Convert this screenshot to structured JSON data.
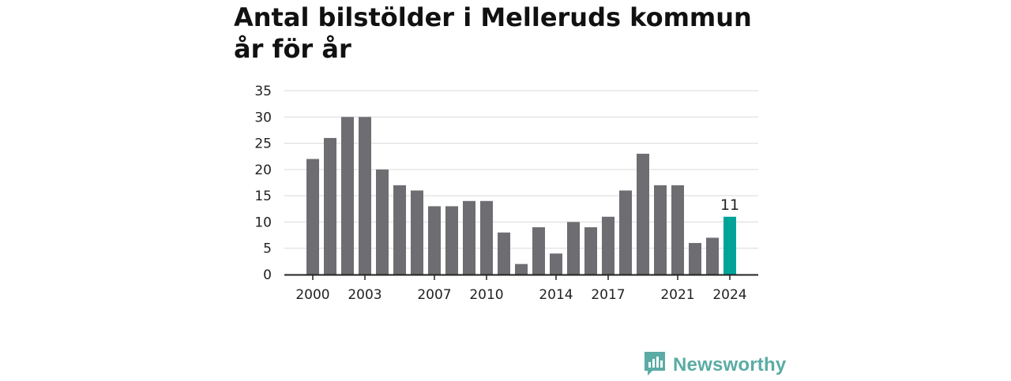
{
  "chart_data": {
    "type": "bar",
    "title": "Antal bilstölder i Melleruds kommun år för år",
    "xlabel": "",
    "ylabel": "",
    "ylim": [
      0,
      35
    ],
    "yticks": [
      0,
      5,
      10,
      15,
      20,
      25,
      30,
      35
    ],
    "categories": [
      "2000",
      "2001",
      "2002",
      "2003",
      "2004",
      "2005",
      "2006",
      "2007",
      "2008",
      "2009",
      "2010",
      "2011",
      "2012",
      "2013",
      "2014",
      "2015",
      "2016",
      "2017",
      "2018",
      "2019",
      "2020",
      "2021",
      "2022",
      "2023",
      "2024"
    ],
    "xtick_labels": [
      "2000",
      "2003",
      "2007",
      "2010",
      "2014",
      "2017",
      "2021",
      "2024"
    ],
    "values": [
      22,
      26,
      30,
      30,
      20,
      17,
      16,
      13,
      13,
      14,
      14,
      8,
      2,
      9,
      4,
      10,
      9,
      11,
      16,
      23,
      17,
      17,
      6,
      7,
      11
    ],
    "highlight": {
      "category": "2024",
      "label": "11"
    },
    "colors": {
      "bar": "#6e6d72",
      "highlight": "#00a398",
      "grid": "#d9d9d9",
      "axis": "#222222"
    },
    "grid": true,
    "legend": "none"
  },
  "brand": {
    "name": "Newsworthy",
    "icon": "newsworthy-chart-icon",
    "color": "#5aaca4"
  }
}
